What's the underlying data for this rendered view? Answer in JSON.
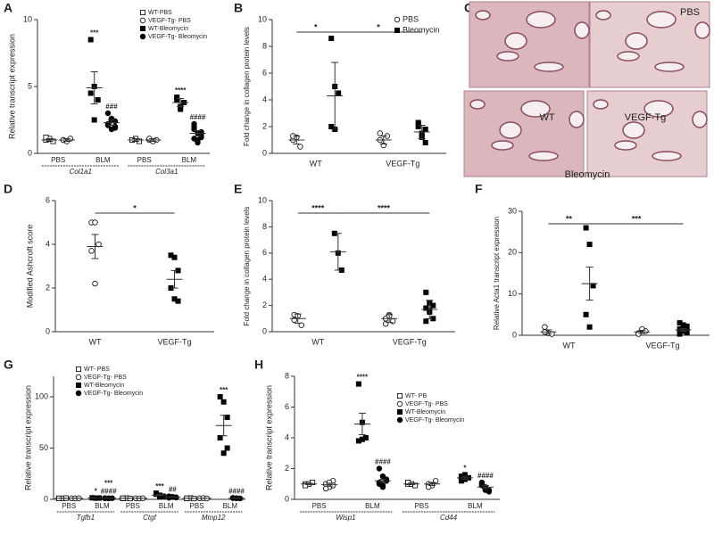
{
  "chart_data": [
    {
      "type": "dot",
      "panel": "A",
      "y_label": "Relative transcript expression",
      "ylim": [
        0,
        10
      ],
      "yticks": [
        0,
        5,
        10
      ],
      "categories": [
        "Col1a1",
        "Col3a1"
      ],
      "subgroups": [
        "PBS",
        "BLM"
      ],
      "series": [
        {
          "name": "WT-PBS",
          "marker": "open-square",
          "color": "#000000",
          "values": [
            [
              1,
              1.1,
              0.9,
              1.2
            ],
            [
              1,
              1.1,
              0.9,
              1
            ]
          ],
          "mean": [
            1,
            1
          ],
          "error": [
            0.1,
            0.1
          ]
        },
        {
          "name": "VEGF-Tg- PBS",
          "marker": "open-circle",
          "color": "#000000",
          "values": [
            [
              1,
              0.9,
              1.1,
              1
            ],
            [
              1,
              0.9,
              1,
              1.1
            ]
          ],
          "mean": [
            1,
            1
          ],
          "error": [
            0.1,
            0.1
          ]
        },
        {
          "name": "WT-Bleomycin",
          "marker": "filled-square",
          "color": "#000000",
          "values": [
            [
              8.5,
              5,
              4,
              4.5,
              2.5
            ],
            [
              4,
              3.5,
              3.8,
              4.2,
              3.3
            ]
          ],
          "mean": [
            4.9,
            3.8
          ],
          "error": [
            1.2,
            0.3
          ],
          "annotations": [
            "***",
            "****"
          ]
        },
        {
          "name": "VEGF-Tg- Bleomycin",
          "marker": "filled-circle",
          "color": "#000000",
          "values": [
            [
              3,
              2.5,
              2,
              2.2,
              1.8,
              2.4,
              2.1,
              2.6,
              1.9
            ],
            [
              2,
              1.5,
              1.2,
              1.8,
              1,
              1.4,
              2.2,
              0.8,
              1.6,
              1.1
            ]
          ],
          "mean": [
            2.3,
            1.5
          ],
          "error": [
            0.2,
            0.2
          ],
          "annotations": [
            "###",
            "####"
          ]
        }
      ]
    },
    {
      "type": "dot",
      "panel": "B",
      "y_label": "Fold change in collagen protein levels",
      "ylim": [
        0,
        10
      ],
      "yticks": [
        0,
        2,
        4,
        6,
        8,
        10
      ],
      "categories": [
        "WT",
        "VEGF-Tg"
      ],
      "brackets": [
        "*",
        "*"
      ],
      "series": [
        {
          "name": "PBS",
          "marker": "open-circle",
          "color": "#000000",
          "values": [
            [
              1,
              1.2,
              0.5,
              1.3
            ],
            [
              1,
              0.6,
              1.3,
              1.5
            ]
          ],
          "mean": [
            1,
            1
          ],
          "error": [
            0.3,
            0.3
          ]
        },
        {
          "name": "Bleomycin",
          "marker": "filled-square",
          "color": "#000000",
          "values": [
            [
              8.6,
              5,
              4.5,
              2,
              1.8
            ],
            [
              2.2,
              1.3,
              1.8,
              2,
              1.5,
              0.8,
              2.3,
              1.2
            ]
          ],
          "mean": [
            4.3,
            1.6
          ],
          "error": [
            2.5,
            0.5
          ]
        }
      ]
    },
    {
      "type": "image",
      "panel": "C",
      "labels": [
        "PBS",
        "WT",
        "VEGF-Tg",
        "Bleomycin"
      ]
    },
    {
      "type": "dot",
      "panel": "D",
      "y_label": "Modified Ashcroft score",
      "ylim": [
        0,
        6
      ],
      "yticks": [
        0,
        2,
        4,
        6
      ],
      "categories": [
        "WT",
        "VEGF-Tg"
      ],
      "brackets": [
        "*"
      ],
      "markers": [
        "open-circle",
        "filled-square"
      ],
      "values": [
        [
          5,
          5,
          4,
          3.7,
          2.2
        ],
        [
          3.5,
          3.4,
          2.8,
          2,
          1.5,
          1.4
        ]
      ],
      "mean": [
        3.9,
        2.4
      ],
      "error": [
        0.55,
        0.4
      ]
    },
    {
      "type": "dot",
      "panel": "E",
      "y_label": "Fold change in collagen protein levels",
      "ylim": [
        0,
        10
      ],
      "yticks": [
        0,
        2,
        4,
        6,
        8,
        10
      ],
      "categories": [
        "WT",
        "VEGF-Tg"
      ],
      "brackets": [
        "****",
        "****"
      ],
      "series": [
        {
          "marker": "open-circle",
          "color": "#000000",
          "values": [
            [
              1.3,
              1.2,
              0.5,
              0.9
            ],
            [
              1,
              1.3,
              0.8,
              0.6,
              1.2
            ]
          ],
          "mean": [
            1,
            1
          ],
          "error": [
            0.35,
            0.3
          ]
        },
        {
          "marker": "filled-square",
          "color": "#000000",
          "values": [
            [
              7.5,
              6,
              4.7
            ],
            [
              3,
              2.2,
              2,
              1.8,
              1.5,
              1,
              0.8,
              1.6
            ]
          ],
          "mean": [
            6.1,
            1.7
          ],
          "error": [
            1.4,
            0.7
          ]
        }
      ]
    },
    {
      "type": "dot",
      "panel": "F",
      "y_label": "Relative Acta1 transcript expression",
      "ylim": [
        0,
        30
      ],
      "yticks": [
        0,
        10,
        20,
        30
      ],
      "categories": [
        "WT",
        "VEGF-Tg"
      ],
      "brackets": [
        "**",
        "***"
      ],
      "series": [
        {
          "marker": "open-circle",
          "color": "#000000",
          "values": [
            [
              2,
              0.5,
              0.3,
              0.8
            ],
            [
              0.5,
              1.5,
              1,
              0.3
            ]
          ],
          "mean": [
            0.8,
            0.8
          ],
          "error": [
            0.5,
            0.4
          ]
        },
        {
          "marker": "filled-square",
          "color": "#000000",
          "values": [
            [
              26,
              22,
              12,
              5,
              2
            ],
            [
              3,
              2.5,
              2,
              1.5,
              1,
              0.8,
              0.5,
              1.2,
              2.2,
              0.3,
              1.8,
              0.6
            ]
          ],
          "mean": [
            12.5,
            1.3
          ],
          "error": [
            4,
            0.3
          ]
        }
      ]
    },
    {
      "type": "dot",
      "panel": "G",
      "y_label": "Relative transcript expression",
      "ylim": [
        0,
        120
      ],
      "yticks": [
        0,
        50,
        100
      ],
      "categories": [
        "Tgfb1",
        "Ctgf",
        "Mmp12"
      ],
      "subgroups": [
        "PBS",
        "BLM"
      ],
      "series": [
        {
          "name": "WT- PBS",
          "marker": "open-square",
          "color": "#000000",
          "values": [
            [
              1,
              1,
              1.2,
              0.9
            ],
            [
              1,
              1.2,
              0.8,
              1
            ],
            [
              1,
              1.3,
              0.8,
              1
            ]
          ],
          "mean": [
            1,
            1,
            1
          ],
          "error": [
            0.1,
            0.1,
            0.1
          ]
        },
        {
          "name": "VEGF-Tg- PBS",
          "marker": "open-circle",
          "color": "#000000",
          "values": [
            [
              1,
              0.9,
              1.1
            ],
            [
              1,
              0.8,
              1.1
            ],
            [
              1,
              1.2,
              0.9
            ]
          ],
          "mean": [
            1,
            1,
            1
          ],
          "error": [
            0.1,
            0.1,
            0.1
          ]
        },
        {
          "name": "WT-Bleomycin",
          "marker": "filled-square",
          "color": "#000000",
          "values": [
            [
              1.5,
              1.2,
              1.3
            ],
            [
              6,
              4,
              3,
              5,
              2.5
            ],
            [
              100,
              95,
              80,
              60,
              45,
              50
            ]
          ],
          "mean": [
            1.3,
            4.1,
            72
          ],
          "error": [
            0.1,
            0.6,
            10
          ],
          "annotations": [
            "*",
            "***",
            "***"
          ]
        },
        {
          "name": "VEGF-Tg- Bleomycin",
          "marker": "filled-circle",
          "color": "#000000",
          "values": [
            [
              1,
              0.9,
              1.1,
              1.2,
              1
            ],
            [
              3,
              2.5,
              2,
              1.5,
              2.2,
              1.8
            ],
            [
              1.2,
              1,
              0.9,
              1.5,
              1.1
            ]
          ],
          "mean": [
            1,
            2.2,
            1.1
          ],
          "error": [
            0.1,
            0.2,
            0.1
          ],
          "annotations": [
            [
              "***",
              "####"
            ],
            "##",
            "####"
          ]
        }
      ]
    },
    {
      "type": "dot",
      "panel": "H",
      "y_label": "Relative transcript expression",
      "ylim": [
        0,
        8
      ],
      "yticks": [
        0,
        2,
        4,
        6,
        8
      ],
      "categories": [
        "Wisp1",
        "Cd44"
      ],
      "subgroups": [
        "PBS",
        "BLM"
      ],
      "series": [
        {
          "name": "WT- PB",
          "marker": "open-square",
          "color": "#000000",
          "values": [
            [
              1,
              1,
              1.1,
              0.9
            ],
            [
              1,
              1,
              0.9,
              1.1
            ]
          ],
          "mean": [
            1,
            1
          ],
          "error": [
            0.05,
            0.05
          ]
        },
        {
          "name": "VEGF-Tg- PBS",
          "marker": "open-circle",
          "color": "#000000",
          "values": [
            [
              1,
              0.8,
              1.2,
              0.7,
              1.1,
              0.9
            ],
            [
              1,
              0.9,
              1.2,
              0.8
            ]
          ],
          "mean": [
            0.95,
            1
          ],
          "error": [
            0.1,
            0.1
          ]
        },
        {
          "name": "WT-Bleomycin",
          "marker": "filled-square",
          "color": "#000000",
          "values": [
            [
              7.5,
              5,
              4,
              3.8,
              3.9
            ],
            [
              1.5,
              1.3,
              1.4,
              1.2,
              1.6
            ]
          ],
          "mean": [
            4.9,
            1.4
          ],
          "error": [
            0.7,
            0.1
          ],
          "annotations": [
            "****",
            "*"
          ]
        },
        {
          "name": "VEGF-Tg- Bleomycin",
          "marker": "filled-circle",
          "color": "#000000",
          "values": [
            [
              2,
              1.5,
              1.2,
              1,
              0.8,
              1.3,
              1.1,
              0.9
            ],
            [
              1,
              0.8,
              0.6,
              0.9,
              0.7,
              0.5,
              1.1,
              0.6
            ]
          ],
          "mean": [
            1.2,
            0.8
          ],
          "error": [
            0.1,
            0.1
          ],
          "annotations": [
            "####",
            "####"
          ]
        }
      ]
    }
  ]
}
